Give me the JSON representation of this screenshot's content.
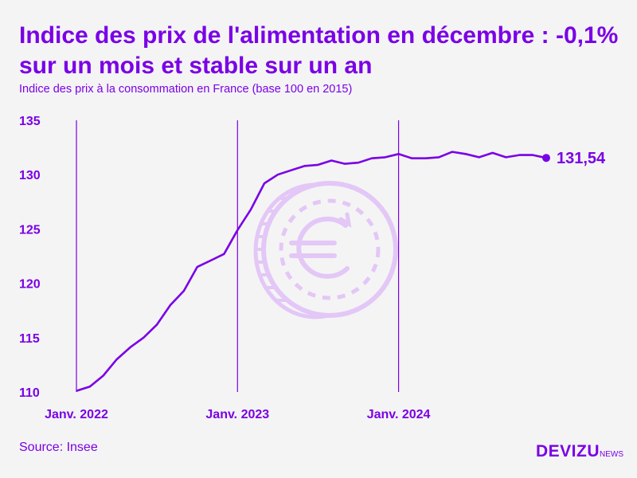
{
  "title": "Indice des prix de l'alimentation en décembre : -0,1% sur un mois et stable sur un an",
  "subtitle": "Indice des prix à la consommation en France (base 100 en 2015)",
  "source": "Source: Insee",
  "brand": {
    "name": "DEVIZU",
    "suffix": "NEWS"
  },
  "colors": {
    "accent": "#7a00e6",
    "line": "#7a00e6",
    "coin": "#e3c7f7",
    "background": "#f4f4f4"
  },
  "decoration": {
    "icon": "euro-coin-icon"
  },
  "chart_data": {
    "type": "line",
    "title": "Indice des prix de l'alimentation en décembre : -0,1% sur un mois et stable sur un an",
    "xlabel": "",
    "ylabel": "",
    "ylim": [
      110,
      135
    ],
    "yticks": [
      110,
      115,
      120,
      125,
      130,
      135
    ],
    "xticks": [
      {
        "label": "Janv. 2022",
        "index": 0
      },
      {
        "label": "Janv. 2023",
        "index": 12
      },
      {
        "label": "Janv. 2024",
        "index": 24
      }
    ],
    "grid": "vertical lines at January of each year",
    "legend": "none",
    "x": [
      "2022-01",
      "2022-02",
      "2022-03",
      "2022-04",
      "2022-05",
      "2022-06",
      "2022-07",
      "2022-08",
      "2022-09",
      "2022-10",
      "2022-11",
      "2022-12",
      "2023-01",
      "2023-02",
      "2023-03",
      "2023-04",
      "2023-05",
      "2023-06",
      "2023-07",
      "2023-08",
      "2023-09",
      "2023-10",
      "2023-11",
      "2023-12",
      "2024-01",
      "2024-02",
      "2024-03",
      "2024-04",
      "2024-05",
      "2024-06",
      "2024-07",
      "2024-08",
      "2024-09",
      "2024-10",
      "2024-11",
      "2024-12"
    ],
    "series": [
      {
        "name": "",
        "values": [
          110.1,
          110.5,
          111.5,
          113.0,
          114.1,
          115.0,
          116.2,
          118.0,
          119.3,
          121.5,
          122.1,
          122.7,
          124.9,
          126.8,
          129.2,
          130.0,
          130.4,
          130.8,
          130.9,
          131.3,
          131.0,
          131.1,
          131.5,
          131.6,
          131.9,
          131.5,
          131.5,
          131.6,
          132.1,
          131.9,
          131.6,
          132.0,
          131.6,
          131.8,
          131.8,
          131.54
        ],
        "end_label": "131,54"
      }
    ]
  }
}
